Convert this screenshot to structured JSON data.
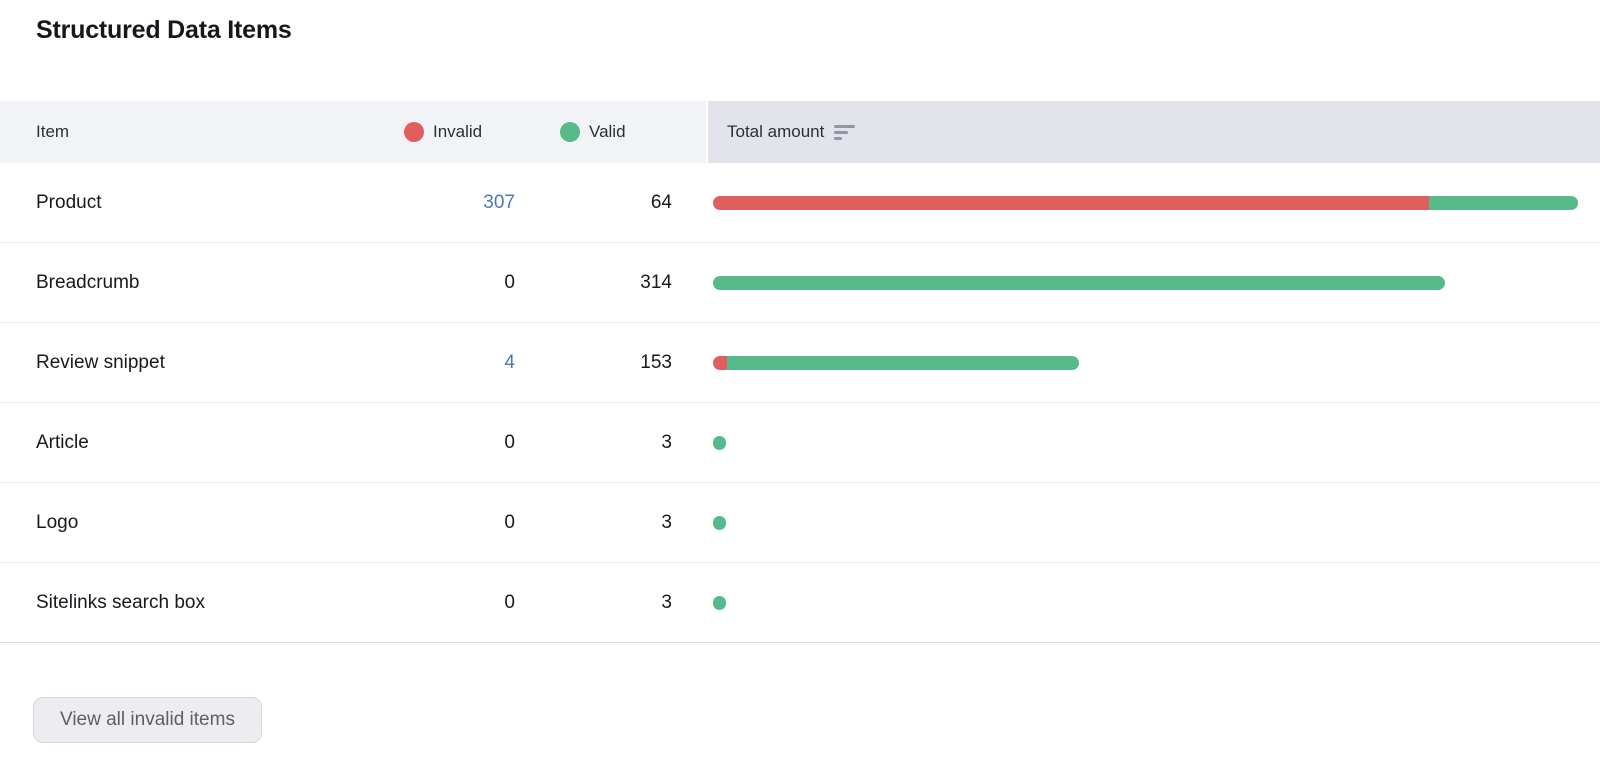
{
  "title": "Structured Data Items",
  "colors": {
    "invalid": "#e25d5d",
    "valid": "#56ba8a",
    "link": "#4a79ba"
  },
  "table": {
    "columns": {
      "item": "Item",
      "invalid": "Invalid",
      "valid": "Valid",
      "total": "Total amount"
    },
    "rows": [
      {
        "item": "Product",
        "invalid": 307,
        "valid": 64
      },
      {
        "item": "Breadcrumb",
        "invalid": 0,
        "valid": 314
      },
      {
        "item": "Review snippet",
        "invalid": 4,
        "valid": 153
      },
      {
        "item": "Article",
        "invalid": 0,
        "valid": 3
      },
      {
        "item": "Logo",
        "invalid": 0,
        "valid": 3
      },
      {
        "item": "Sitelinks search box",
        "invalid": 0,
        "valid": 3
      }
    ]
  },
  "footer": {
    "view_all_label": "View all invalid items"
  },
  "chart_data": {
    "type": "bar",
    "orientation": "horizontal",
    "stacked": true,
    "categories": [
      "Product",
      "Breadcrumb",
      "Review snippet",
      "Article",
      "Logo",
      "Sitelinks search box"
    ],
    "series": [
      {
        "name": "Invalid",
        "color": "#e25d5d",
        "values": [
          307,
          0,
          4,
          0,
          0,
          0
        ]
      },
      {
        "name": "Valid",
        "color": "#56ba8a",
        "values": [
          64,
          314,
          153,
          3,
          3,
          3
        ]
      }
    ],
    "totals": [
      371,
      314,
      157,
      3,
      3,
      3
    ],
    "xlim": [
      0,
      371
    ],
    "legend_position": "header",
    "grid": false
  }
}
